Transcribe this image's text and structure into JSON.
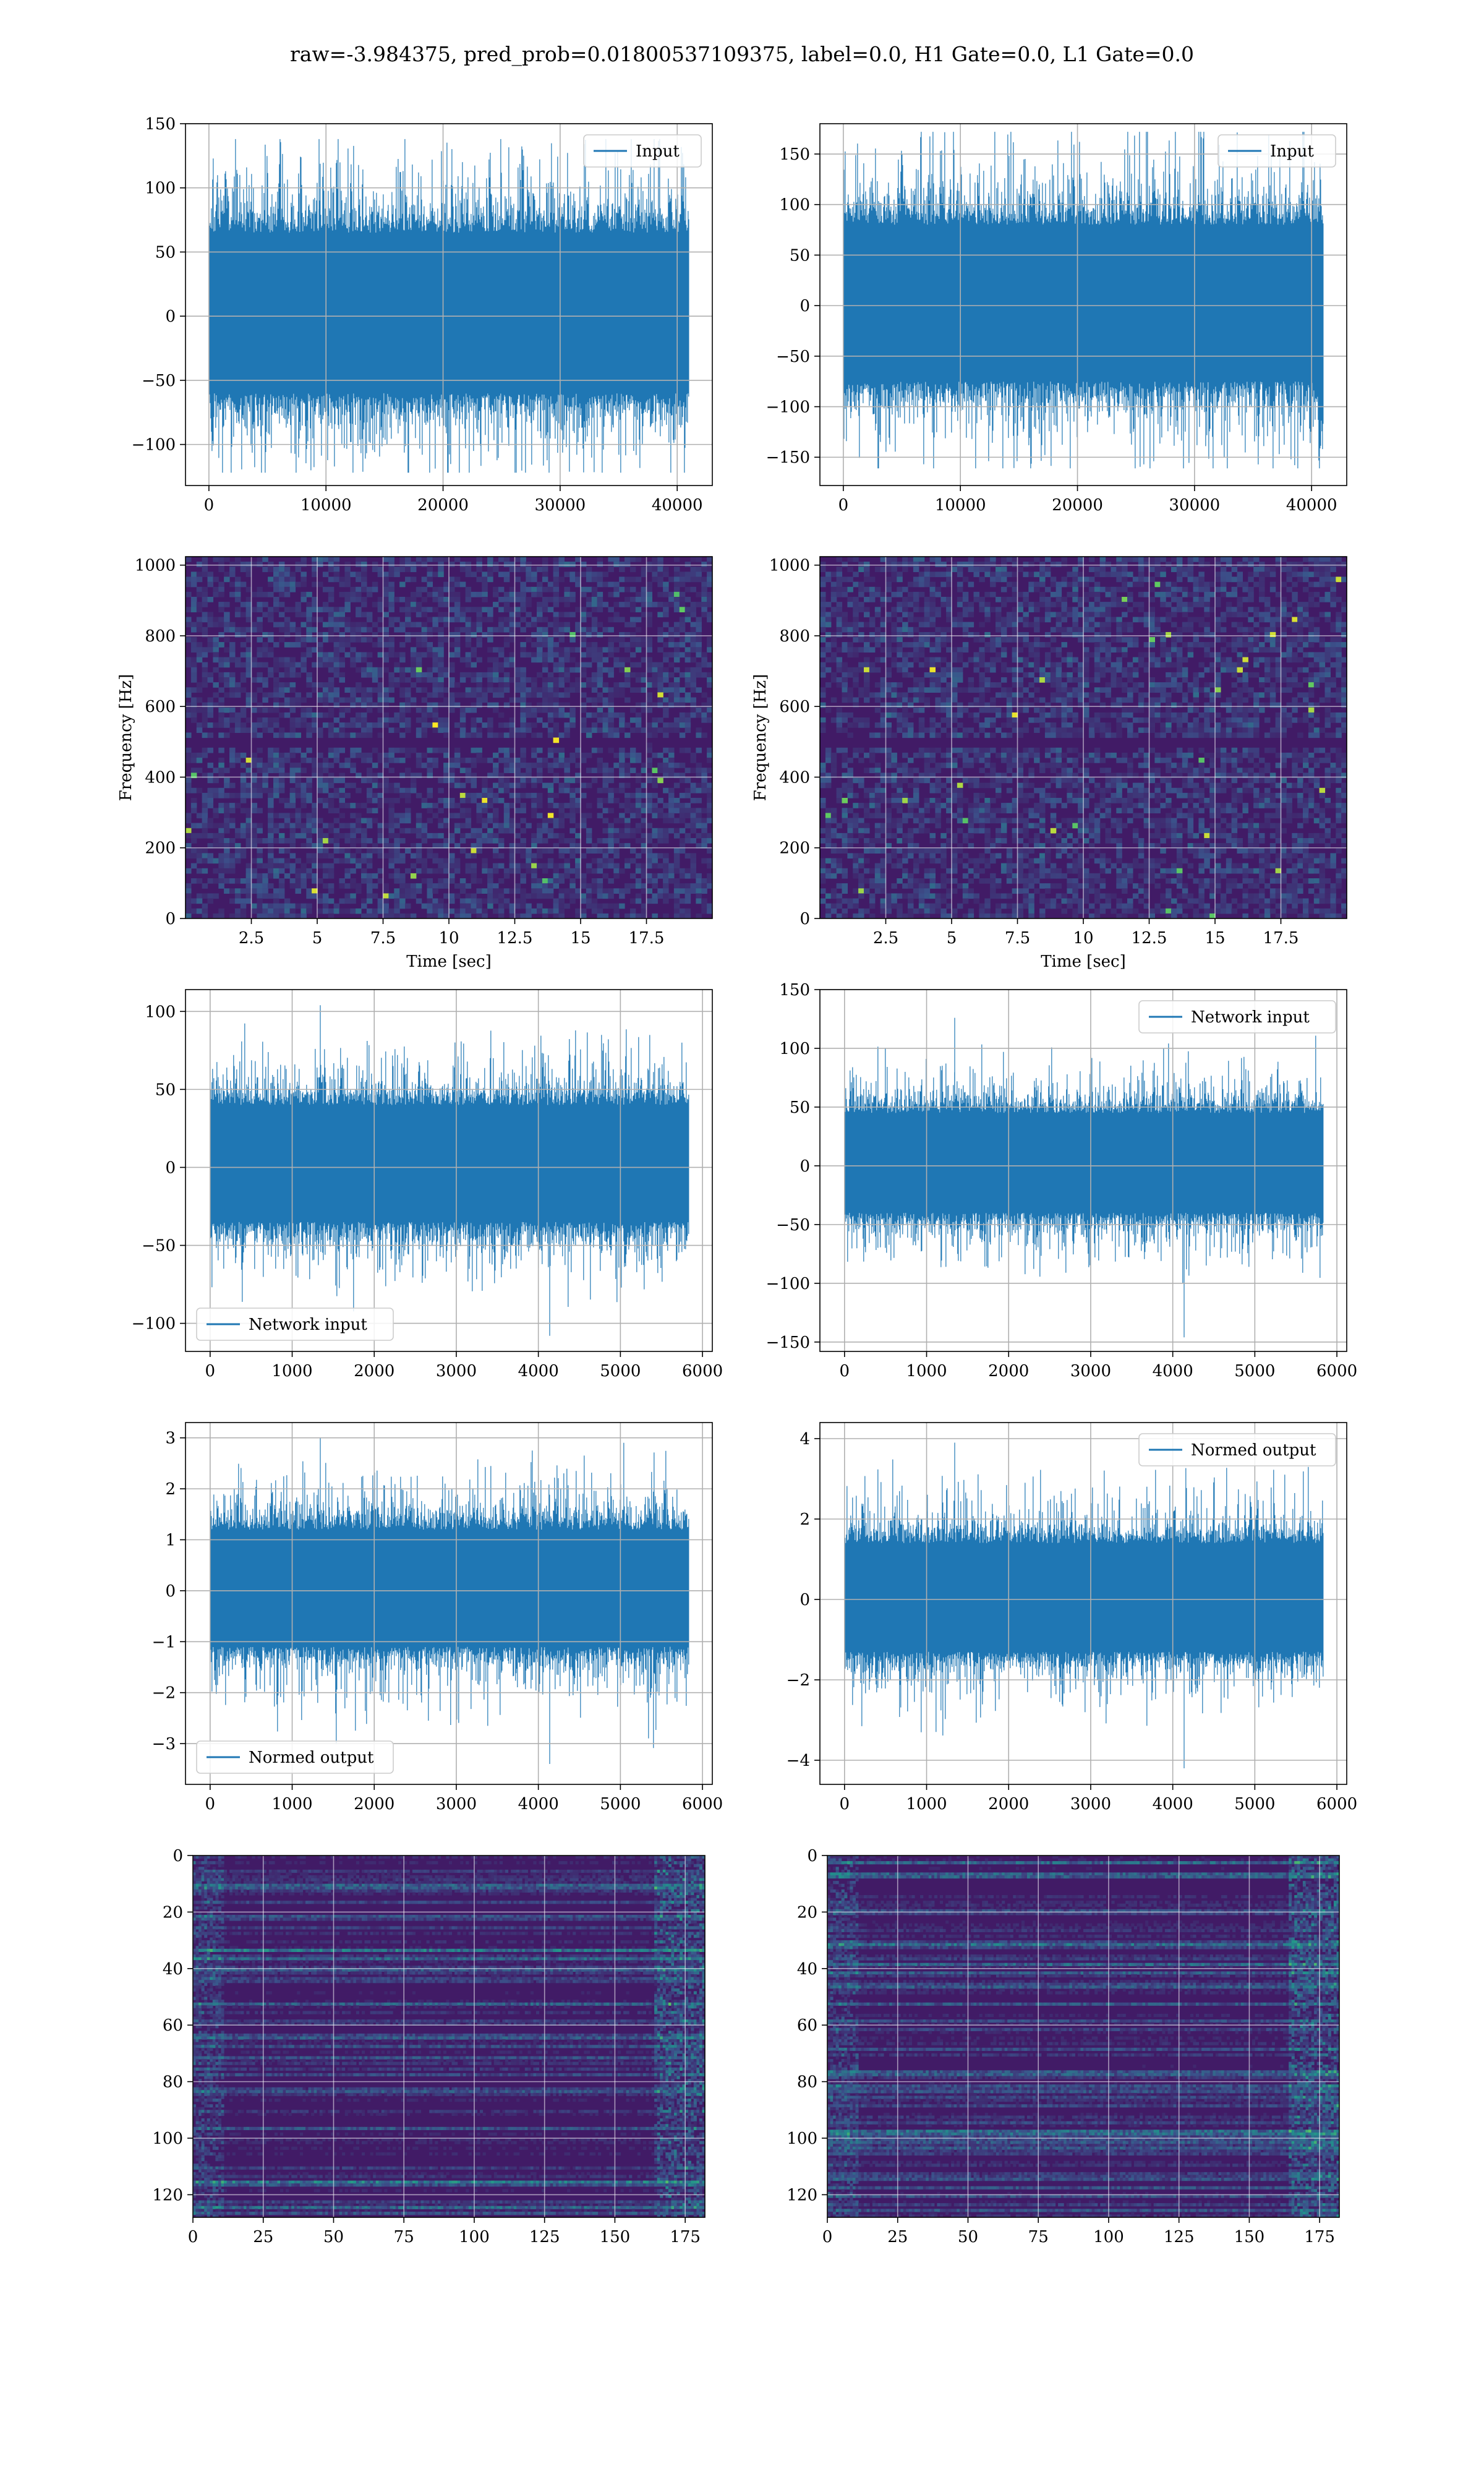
{
  "figure": {
    "title": "raw=-3.984375, pred_prob=0.01800537109375, label=0.0, H1 Gate=0.0, L1 Gate=0.0"
  },
  "colors": {
    "series": "#1f77b4",
    "grid": "#b0b0b0",
    "axes": "#000000"
  },
  "chart_data": [
    {
      "type": "line",
      "row": 1,
      "col": 1,
      "title": "",
      "xlabel": "",
      "ylabel": "",
      "xlim": [
        -2000,
        43000
      ],
      "ylim": [
        -132,
        150
      ],
      "xticks": [
        0,
        10000,
        20000,
        30000,
        40000
      ],
      "yticks": [
        -100,
        -50,
        0,
        50,
        100,
        150
      ],
      "series": [
        {
          "name": "Input",
          "n_samples": 40960,
          "core_min": -60,
          "core_max": 65,
          "min": -122,
          "max": 138
        }
      ],
      "legend": "upper right",
      "grid": true
    },
    {
      "type": "line",
      "row": 1,
      "col": 2,
      "title": "",
      "xlabel": "",
      "ylabel": "",
      "xlim": [
        -2000,
        43000
      ],
      "ylim": [
        -178,
        180
      ],
      "xticks": [
        0,
        10000,
        20000,
        30000,
        40000
      ],
      "yticks": [
        -150,
        -100,
        -50,
        0,
        50,
        100,
        150
      ],
      "series": [
        {
          "name": "Input",
          "n_samples": 40960,
          "core_min": -75,
          "core_max": 80,
          "min": -161,
          "max": 172
        }
      ],
      "legend": "upper right",
      "grid": true
    },
    {
      "type": "heatmap",
      "row": 2,
      "col": 1,
      "title": "",
      "xlabel": "Time [sec]",
      "ylabel": "Frequency [Hz]",
      "xlim": [
        0,
        20
      ],
      "ylim": [
        0,
        1024
      ],
      "xticks": [
        2.5,
        5.0,
        7.5,
        10.0,
        12.5,
        15.0,
        17.5
      ],
      "yticks": [
        0,
        200,
        400,
        600,
        800,
        1000
      ],
      "colormap": "viridis",
      "grid": true,
      "notch_hz": 500
    },
    {
      "type": "heatmap",
      "row": 2,
      "col": 2,
      "title": "",
      "xlabel": "Time [sec]",
      "ylabel": "Frequency [Hz]",
      "xlim": [
        0,
        20
      ],
      "ylim": [
        0,
        1024
      ],
      "xticks": [
        2.5,
        5.0,
        7.5,
        10.0,
        12.5,
        15.0,
        17.5
      ],
      "yticks": [
        0,
        200,
        400,
        600,
        800,
        1000
      ],
      "colormap": "viridis",
      "grid": true,
      "notch_hz": 500
    },
    {
      "type": "line",
      "row": 3,
      "col": 1,
      "title": "",
      "xlabel": "",
      "ylabel": "",
      "xlim": [
        -300,
        6120
      ],
      "ylim": [
        -118,
        114
      ],
      "xticks": [
        0,
        1000,
        2000,
        3000,
        4000,
        5000,
        6000
      ],
      "yticks": [
        -100,
        -50,
        0,
        50,
        100
      ],
      "series": [
        {
          "name": "Network input",
          "n_samples": 5830,
          "core_min": -35,
          "core_max": 40,
          "min": -108,
          "max": 104
        }
      ],
      "legend": "lower left",
      "grid": true
    },
    {
      "type": "line",
      "row": 3,
      "col": 2,
      "title": "",
      "xlabel": "",
      "ylabel": "",
      "xlim": [
        -300,
        6120
      ],
      "ylim": [
        -158,
        150
      ],
      "xticks": [
        0,
        1000,
        2000,
        3000,
        4000,
        5000,
        6000
      ],
      "yticks": [
        -150,
        -100,
        -50,
        0,
        50,
        100,
        150
      ],
      "series": [
        {
          "name": "Network input",
          "n_samples": 5830,
          "core_min": -40,
          "core_max": 45,
          "min": -146,
          "max": 126
        }
      ],
      "legend": "upper right",
      "grid": true
    },
    {
      "type": "line",
      "row": 4,
      "col": 1,
      "title": "",
      "xlabel": "",
      "ylabel": "",
      "xlim": [
        -300,
        6120
      ],
      "ylim": [
        -3.8,
        3.3
      ],
      "xticks": [
        0,
        1000,
        2000,
        3000,
        4000,
        5000,
        6000
      ],
      "yticks": [
        -3,
        -2,
        -1,
        0,
        1,
        2,
        3
      ],
      "series": [
        {
          "name": "Normed output",
          "n_samples": 5830,
          "core_min": -1.1,
          "core_max": 1.2,
          "min": -3.4,
          "max": 3.0
        }
      ],
      "legend": "lower left",
      "grid": true
    },
    {
      "type": "line",
      "row": 4,
      "col": 2,
      "title": "",
      "xlabel": "",
      "ylabel": "",
      "xlim": [
        -300,
        6120
      ],
      "ylim": [
        -4.6,
        4.4
      ],
      "xticks": [
        0,
        1000,
        2000,
        3000,
        4000,
        5000,
        6000
      ],
      "yticks": [
        -4,
        -2,
        0,
        2,
        4
      ],
      "series": [
        {
          "name": "Normed output",
          "n_samples": 5830,
          "core_min": -1.3,
          "core_max": 1.4,
          "min": -4.2,
          "max": 3.9
        }
      ],
      "legend": "upper right",
      "grid": true
    },
    {
      "type": "heatmap",
      "row": 5,
      "col": 1,
      "title": "",
      "xlabel": "",
      "ylabel": "",
      "xlim": [
        0,
        182
      ],
      "ylim": [
        128,
        0
      ],
      "xticks": [
        0,
        25,
        50,
        75,
        100,
        125,
        150,
        175
      ],
      "yticks": [
        0,
        20,
        40,
        60,
        80,
        100,
        120
      ],
      "colormap": "viridis",
      "grid": true,
      "rows": 128,
      "cols": 182
    },
    {
      "type": "heatmap",
      "row": 5,
      "col": 2,
      "title": "",
      "xlabel": "",
      "ylabel": "",
      "xlim": [
        0,
        182
      ],
      "ylim": [
        128,
        0
      ],
      "xticks": [
        0,
        25,
        50,
        75,
        100,
        125,
        150,
        175
      ],
      "yticks": [
        0,
        20,
        40,
        60,
        80,
        100,
        120
      ],
      "colormap": "viridis",
      "grid": true,
      "rows": 128,
      "cols": 182
    }
  ]
}
